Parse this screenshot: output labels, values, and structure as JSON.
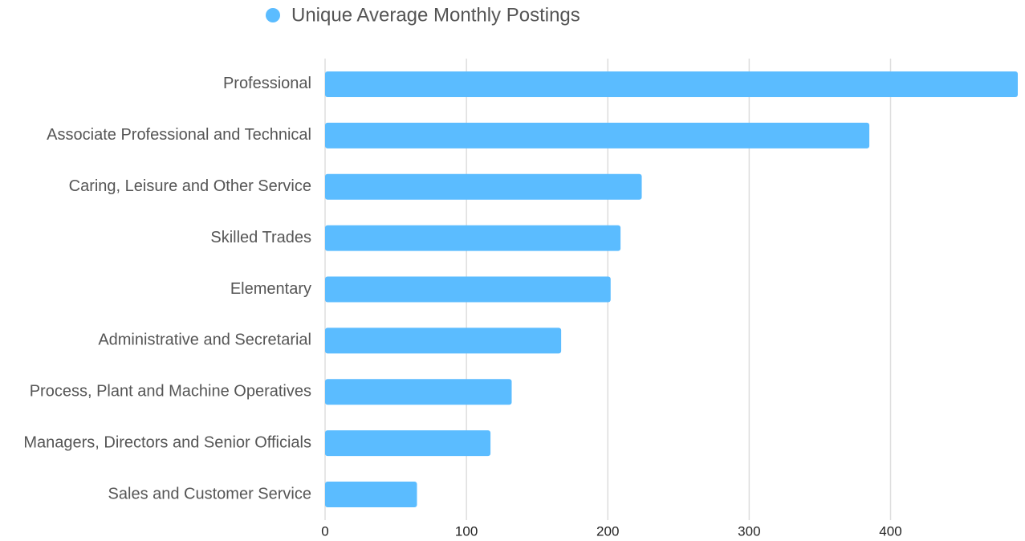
{
  "chart_data": {
    "type": "hbar",
    "categories": [
      "Professional",
      "Associate Professional and Technical",
      "Caring, Leisure and Other Service",
      "Skilled Trades",
      "Elementary",
      "Administrative and Secretarial",
      "Process, Plant and Machine Operatives",
      "Managers, Directors and Senior Officials",
      "Sales and Customer Service"
    ],
    "series": [
      {
        "name": "Unique Average Monthly Postings",
        "color": "#5bbcff",
        "values": [
          490,
          385,
          224,
          209,
          202,
          167,
          132,
          117,
          65
        ]
      }
    ],
    "xlim": [
      0,
      490
    ],
    "xticks": [
      0,
      100,
      200,
      300,
      400
    ],
    "grid": true,
    "legend": "top"
  }
}
